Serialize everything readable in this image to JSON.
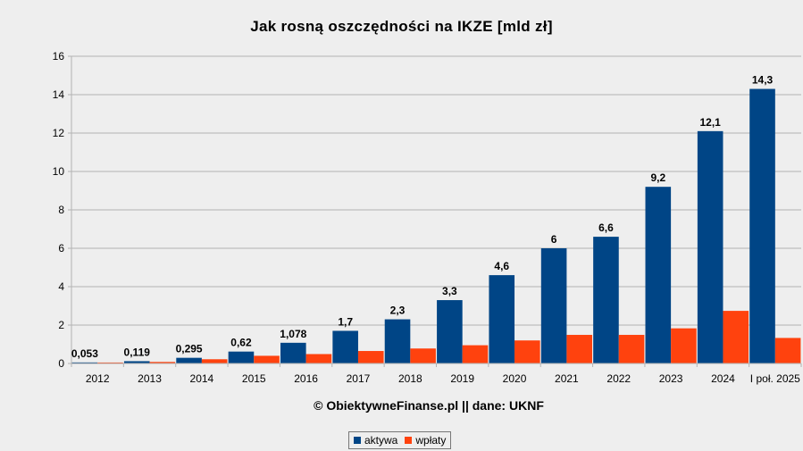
{
  "chart_data": {
    "type": "bar",
    "title": "Jak rosną oszczędności na IKZE [mld zł]",
    "categories": [
      "2012",
      "2013",
      "2014",
      "2015",
      "2016",
      "2017",
      "2018",
      "2019",
      "2020",
      "2021",
      "2022",
      "2023",
      "2024",
      "I poł. 2025"
    ],
    "series": [
      {
        "name": "aktywa",
        "color": "#004586",
        "values": [
          0.053,
          0.119,
          0.295,
          0.62,
          1.078,
          1.7,
          2.3,
          3.3,
          4.6,
          6,
          6.6,
          9.2,
          12.1,
          14.3
        ],
        "labels": [
          "0,053",
          "0,119",
          "0,295",
          "0,62",
          "1,078",
          "1,7",
          "2,3",
          "3,3",
          "4,6",
          "6",
          "6,6",
          "9,2",
          "12,1",
          "14,3"
        ]
      },
      {
        "name": "wpłaty",
        "color": "#ff420e",
        "values": [
          0.05,
          0.08,
          0.22,
          0.4,
          0.49,
          0.65,
          0.78,
          0.95,
          1.2,
          1.49,
          1.49,
          1.83,
          2.74,
          1.33
        ]
      }
    ],
    "ylim": [
      0,
      16
    ],
    "yticks": [
      "0",
      "2",
      "4",
      "6",
      "8",
      "10",
      "12",
      "14",
      "16"
    ],
    "grid": true,
    "legend": "bottom",
    "source": "© ObiektywneFinanse.pl || dane: UKNF"
  }
}
